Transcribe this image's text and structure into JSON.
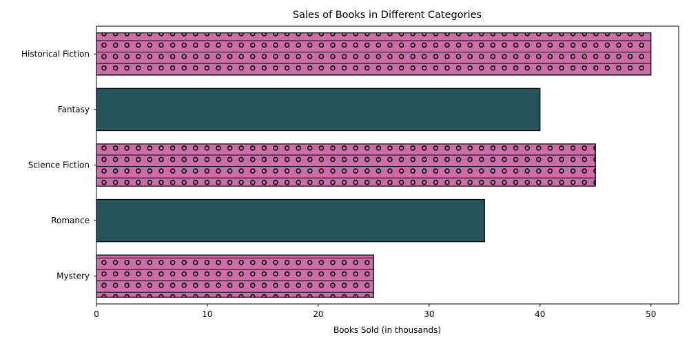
{
  "chart_data": {
    "type": "bar",
    "orientation": "horizontal",
    "title": "Sales of Books in Different Categories",
    "xlabel": "Books Sold (in thousands)",
    "ylabel": "",
    "categories": [
      "Mystery",
      "Romance",
      "Science Fiction",
      "Fantasy",
      "Historical Fiction"
    ],
    "values": [
      25,
      35,
      45,
      40,
      50
    ],
    "bar_styles": [
      "dotted",
      "solid",
      "dotted",
      "solid",
      "dotted"
    ],
    "colors": {
      "dotted_fill": "#cc6ea8",
      "solid_fill": "#27545a",
      "edge": "#000000"
    },
    "xlim": [
      0,
      52.5
    ],
    "xticks": [
      0,
      10,
      20,
      30,
      40,
      50
    ],
    "grid": false,
    "legend": "none"
  }
}
